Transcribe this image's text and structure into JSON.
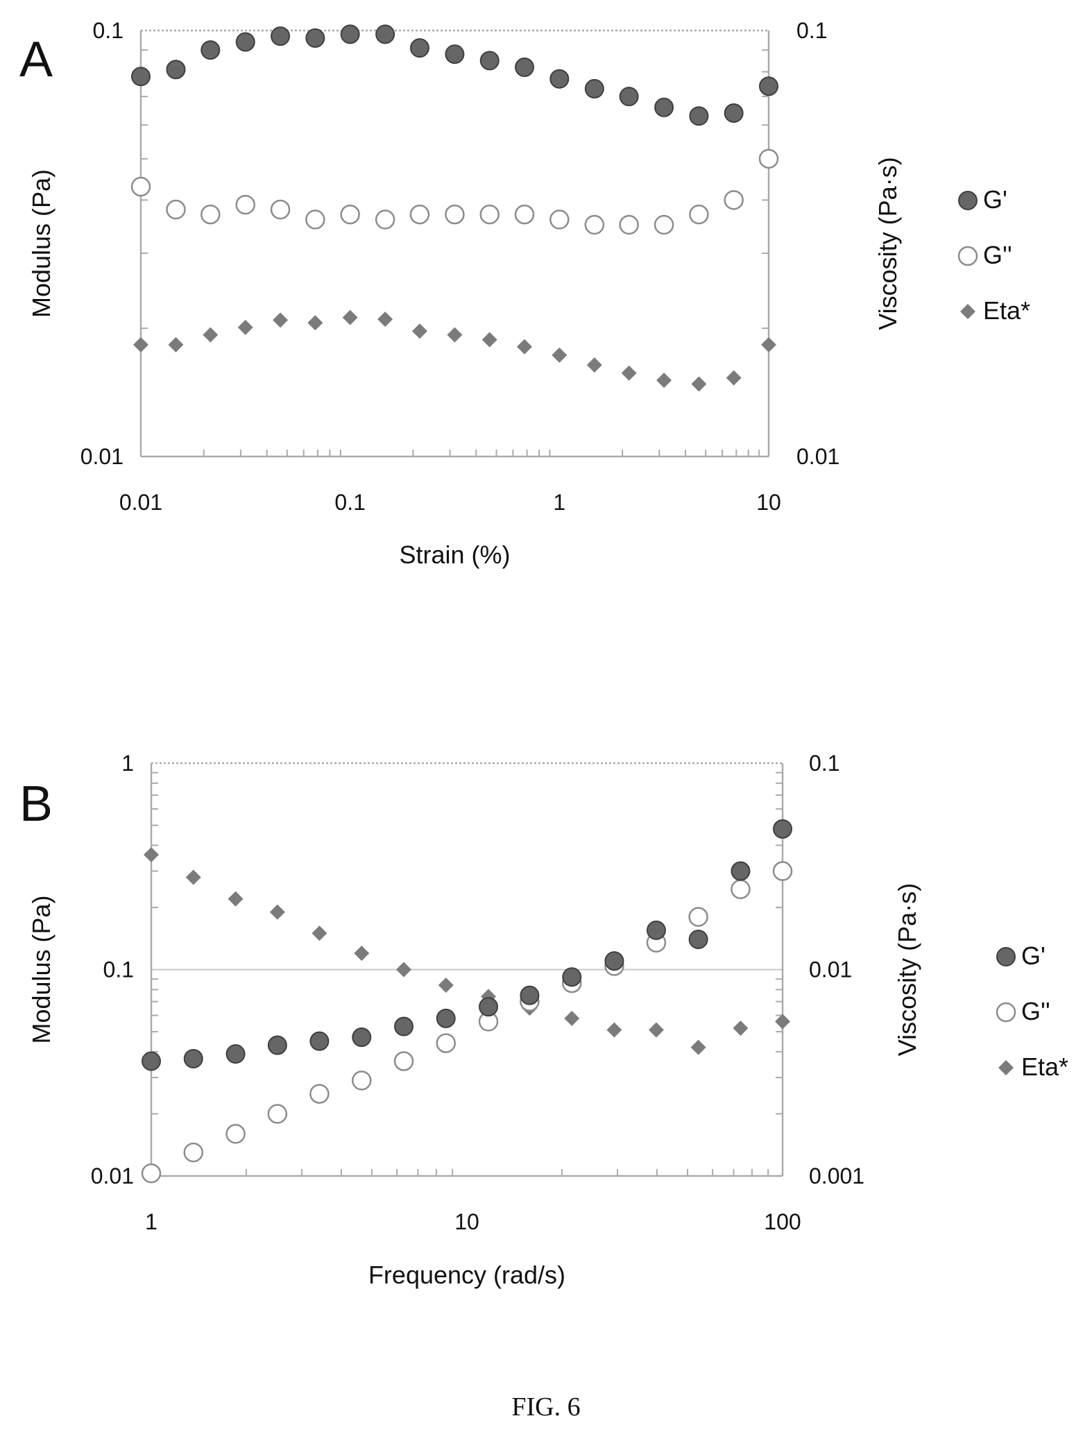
{
  "figure_caption": "FIG. 6",
  "colors": {
    "gp_fill": "#666666",
    "gp_stroke": "#3f3f3f",
    "gpp_fill": "#ffffff",
    "gpp_stroke": "#8c8c8c",
    "eta_fill": "#7b7b7b",
    "axis": "#aaaaaa",
    "grid": "#c8c8c8"
  },
  "chart_data": [
    {
      "type": "scatter",
      "panel_label": "A",
      "title": "",
      "xlabel": "Strain (%)",
      "ylabel": "Modulus (Pa)",
      "y2label": "Viscosity (Pa·s)",
      "x_scale": "log",
      "y_scale": "log",
      "y2_scale": "log",
      "xlim": [
        0.01,
        10
      ],
      "ylim": [
        0.01,
        0.1
      ],
      "y2lim": [
        0.01,
        0.1
      ],
      "x_ticks": [
        "0.01",
        "0.1",
        "1",
        "10"
      ],
      "y_ticks": [
        "0.01",
        "0.1"
      ],
      "y2_ticks": [
        "0.01",
        "0.1"
      ],
      "grid": false,
      "legend_position": "right",
      "series": [
        {
          "name": "G'",
          "marker": "filled-circle",
          "axis": "left",
          "x": [
            0.01,
            0.0147,
            0.0215,
            0.0316,
            0.0464,
            0.0681,
            0.1,
            0.147,
            0.215,
            0.316,
            0.464,
            0.681,
            1.0,
            1.47,
            2.15,
            3.16,
            4.64,
            6.81,
            10.0
          ],
          "y": [
            0.078,
            0.081,
            0.09,
            0.094,
            0.097,
            0.096,
            0.098,
            0.098,
            0.091,
            0.088,
            0.085,
            0.082,
            0.077,
            0.073,
            0.07,
            0.066,
            0.063,
            0.064,
            0.074
          ]
        },
        {
          "name": "G''",
          "marker": "open-circle",
          "axis": "left",
          "x": [
            0.01,
            0.0147,
            0.0215,
            0.0316,
            0.0464,
            0.0681,
            0.1,
            0.147,
            0.215,
            0.316,
            0.464,
            0.681,
            1.0,
            1.47,
            2.15,
            3.16,
            4.64,
            6.81,
            10.0
          ],
          "y": [
            0.043,
            0.038,
            0.037,
            0.039,
            0.038,
            0.036,
            0.037,
            0.036,
            0.037,
            0.037,
            0.037,
            0.037,
            0.036,
            0.035,
            0.035,
            0.035,
            0.037,
            0.04,
            0.05
          ]
        },
        {
          "name": "Eta*",
          "marker": "diamond",
          "axis": "right",
          "x": [
            0.01,
            0.0147,
            0.0215,
            0.0316,
            0.0464,
            0.0681,
            0.1,
            0.147,
            0.215,
            0.316,
            0.464,
            0.681,
            1.0,
            1.47,
            2.15,
            3.16,
            4.64,
            6.81,
            10.0
          ],
          "y": [
            0.0183,
            0.0183,
            0.0193,
            0.0201,
            0.0209,
            0.0206,
            0.0212,
            0.021,
            0.0197,
            0.0193,
            0.0188,
            0.0181,
            0.0173,
            0.0164,
            0.0157,
            0.0151,
            0.0148,
            0.0153,
            0.0183
          ]
        }
      ]
    },
    {
      "type": "scatter",
      "panel_label": "B",
      "title": "",
      "xlabel": "Frequency (rad/s)",
      "ylabel": "Modulus (Pa)",
      "y2label": "Viscosity (Pa·s)",
      "x_scale": "log",
      "y_scale": "log",
      "y2_scale": "log",
      "xlim": [
        1,
        100
      ],
      "ylim": [
        0.01,
        1
      ],
      "y2lim": [
        0.001,
        0.1
      ],
      "x_ticks": [
        "1",
        "10",
        "100"
      ],
      "y_ticks": [
        "0.01",
        "0.1",
        "1"
      ],
      "y2_ticks": [
        "0.001",
        "0.01",
        "0.1"
      ],
      "grid": "horizontal major line at 0.1",
      "legend_position": "right",
      "series": [
        {
          "name": "G'",
          "marker": "filled-circle",
          "axis": "left",
          "x": [
            1.0,
            1.36,
            1.85,
            2.51,
            3.41,
            4.64,
            6.31,
            8.58,
            11.7,
            15.8,
            21.5,
            29.3,
            39.8,
            54.1,
            73.6,
            100.0
          ],
          "y": [
            0.036,
            0.037,
            0.039,
            0.043,
            0.045,
            0.047,
            0.053,
            0.058,
            0.066,
            0.075,
            0.092,
            0.11,
            0.155,
            0.14,
            0.3,
            0.48
          ]
        },
        {
          "name": "G''",
          "marker": "open-circle",
          "axis": "left",
          "x": [
            1.0,
            1.36,
            1.85,
            2.51,
            3.41,
            4.64,
            6.31,
            8.58,
            11.7,
            15.8,
            21.5,
            29.3,
            39.8,
            54.1,
            73.6,
            100.0
          ],
          "y": [
            0.0103,
            0.013,
            0.016,
            0.02,
            0.025,
            0.029,
            0.036,
            0.044,
            0.056,
            0.07,
            0.086,
            0.104,
            0.135,
            0.18,
            0.245,
            0.3
          ]
        },
        {
          "name": "Eta*",
          "marker": "diamond",
          "axis": "right",
          "x": [
            1.0,
            1.36,
            1.85,
            2.51,
            3.41,
            4.64,
            6.31,
            8.58,
            11.7,
            15.8,
            21.5,
            29.3,
            39.8,
            54.1,
            73.6,
            100.0
          ],
          "y": [
            0.036,
            0.028,
            0.022,
            0.019,
            0.015,
            0.012,
            0.01,
            0.0084,
            0.0074,
            0.0065,
            0.0058,
            0.0051,
            0.0051,
            0.0042,
            0.0052,
            0.0056
          ]
        }
      ]
    }
  ]
}
